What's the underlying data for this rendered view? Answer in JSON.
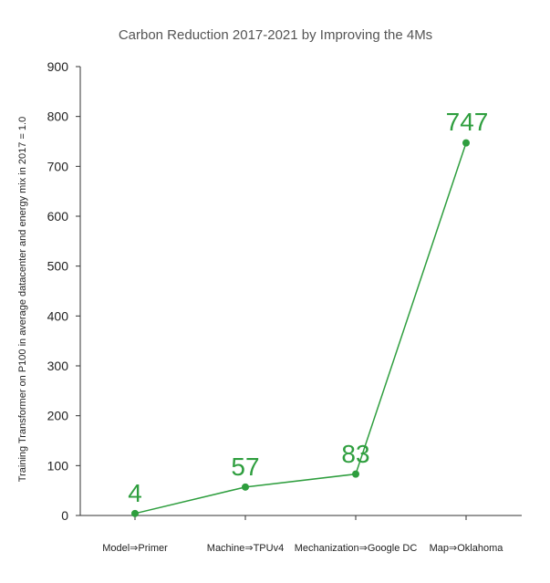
{
  "chart_data": {
    "type": "line",
    "title": "Carbon Reduction 2017-2021 by Improving the 4Ms",
    "xlabel": "",
    "ylabel": "Training Transformer on P100 in average datacenter and energy mix in 2017 = 1.0",
    "categories": [
      "Model⇒Primer",
      "Machine⇒TPUv4",
      "Mechanization⇒Google DC",
      "Map⇒Oklahoma"
    ],
    "series": [
      {
        "values": [
          4,
          57,
          83,
          747
        ],
        "data_labels": [
          "4",
          "57",
          "83",
          "747"
        ]
      }
    ],
    "ylim": [
      0,
      900
    ],
    "yticks": [
      0,
      100,
      200,
      300,
      400,
      500,
      600,
      700,
      800,
      900
    ],
    "grid": false,
    "legend": "none",
    "line_color": "#2e9e3e",
    "label_color": "#2e9e3e",
    "axis_color": "#333333"
  }
}
